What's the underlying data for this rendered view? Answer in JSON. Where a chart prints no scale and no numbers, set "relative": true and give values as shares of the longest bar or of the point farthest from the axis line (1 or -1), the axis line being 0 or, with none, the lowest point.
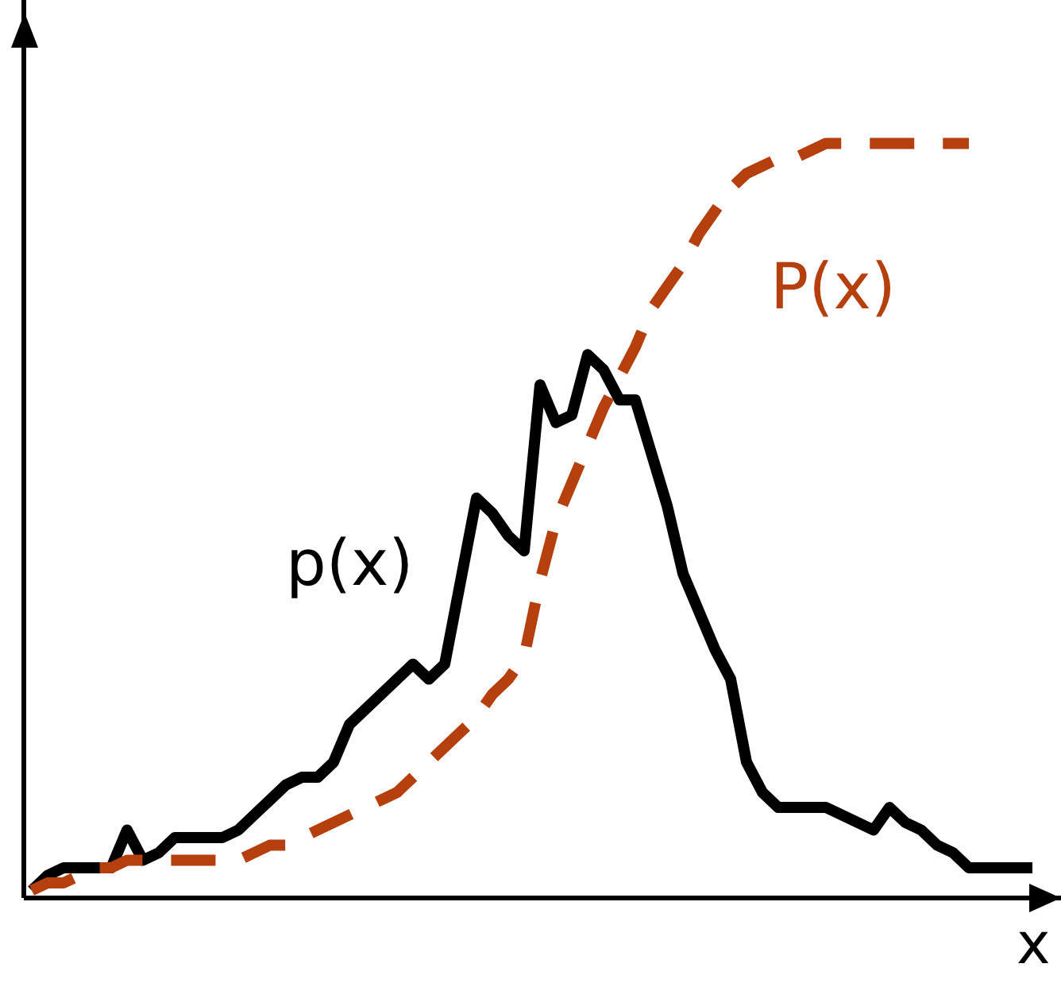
{
  "chart_data": {
    "type": "line",
    "relative": true,
    "xlabel": "x",
    "legend": false,
    "grid": false,
    "marker": "none",
    "categories": [
      null,
      null,
      null,
      null,
      null,
      null,
      null,
      null,
      null,
      null,
      null,
      null,
      null,
      null,
      null,
      null,
      null,
      null,
      null,
      null,
      null,
      null,
      null,
      null,
      null,
      null,
      null,
      null,
      null,
      null,
      null,
      null,
      null,
      null,
      null,
      null,
      null,
      null,
      null,
      null,
      null,
      null,
      null,
      null,
      null,
      null,
      null,
      null,
      null,
      null,
      null,
      null,
      null,
      null,
      null,
      null,
      null,
      null,
      null,
      null,
      null,
      null,
      null,
      null
    ],
    "series": [
      {
        "name": "p(x)",
        "color": "#000000",
        "line_style": "solid",
        "values": [
          0.01,
          0.03,
          0.04,
          0.04,
          0.04,
          0.04,
          0.09,
          0.05,
          0.06,
          0.08,
          0.08,
          0.08,
          0.08,
          0.09,
          0.11,
          0.13,
          0.15,
          0.16,
          0.16,
          0.18,
          0.23,
          0.25,
          0.27,
          0.29,
          0.31,
          0.29,
          0.31,
          0.42,
          0.53,
          0.51,
          0.48,
          0.46,
          0.68,
          0.63,
          0.64,
          0.72,
          0.7,
          0.66,
          0.66,
          0.59,
          0.52,
          0.43,
          0.38,
          0.33,
          0.29,
          0.18,
          0.14,
          0.12,
          0.12,
          0.12,
          0.12,
          0.11,
          0.1,
          0.09,
          0.12,
          0.1,
          0.09,
          0.07,
          0.06,
          0.04,
          0.04,
          0.04,
          0.04,
          0.04
        ]
      },
      {
        "name": "P(x)",
        "color": "#b5400e",
        "line_style": "dashed",
        "values": [
          0.01,
          0.02,
          0.02,
          0.03,
          0.04,
          0.04,
          0.05,
          0.05,
          0.05,
          0.05,
          0.05,
          0.05,
          0.05,
          0.05,
          0.06,
          0.07,
          0.07,
          0.08,
          0.09,
          0.1,
          0.11,
          0.12,
          0.13,
          0.14,
          0.16,
          0.18,
          0.2,
          0.22,
          0.24,
          0.27,
          0.29,
          0.32,
          0.42,
          0.5,
          0.55,
          0.6,
          0.65,
          0.69,
          0.73,
          0.78,
          0.81,
          0.84,
          0.88,
          0.91,
          0.94,
          0.96,
          0.97,
          0.98,
          0.98,
          0.99,
          1.0,
          1.0,
          1.0,
          1.0,
          1.0,
          1.0,
          1.0,
          1.0,
          1.0,
          1.0,
          null,
          null,
          null,
          null
        ]
      }
    ]
  }
}
